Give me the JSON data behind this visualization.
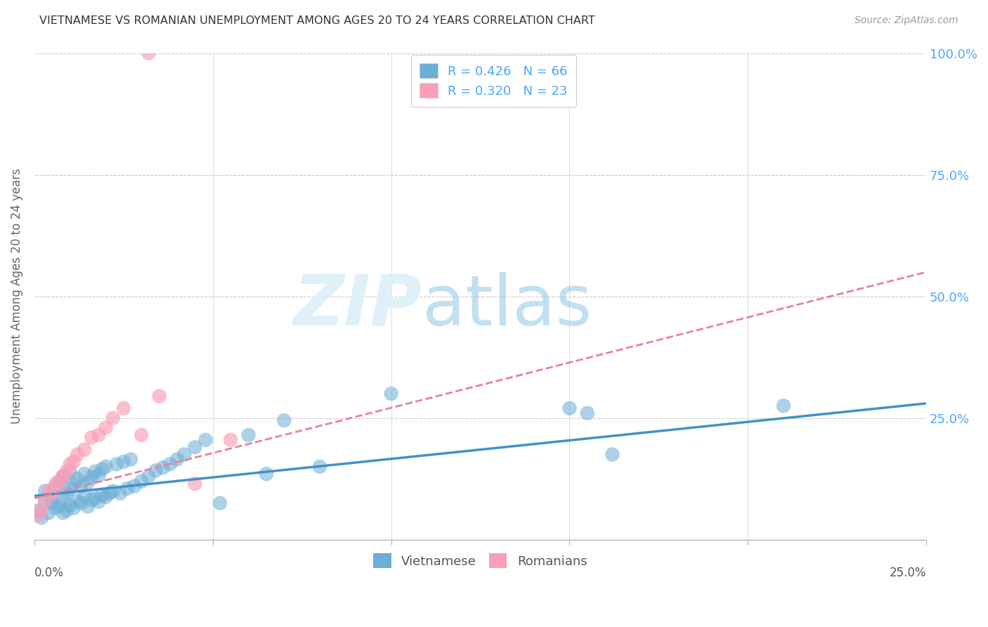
{
  "title": "VIETNAMESE VS ROMANIAN UNEMPLOYMENT AMONG AGES 20 TO 24 YEARS CORRELATION CHART",
  "source": "Source: ZipAtlas.com",
  "ylabel": "Unemployment Among Ages 20 to 24 years",
  "ylabel_ticks": [
    "25.0%",
    "50.0%",
    "75.0%",
    "100.0%"
  ],
  "ylabel_tick_vals": [
    0.25,
    0.5,
    0.75,
    1.0
  ],
  "xmin": 0.0,
  "xmax": 0.25,
  "ymin": 0.0,
  "ymax": 1.0,
  "blue_color": "#6baed6",
  "pink_color": "#fa9fb5",
  "blue_line_color": "#4292c6",
  "pink_line_color": "#e8829a",
  "axis_label_color": "#4da6ff",
  "title_color": "#333333",
  "grid_color": "#cccccc",
  "viet_x": [
    0.001,
    0.002,
    0.003,
    0.003,
    0.004,
    0.005,
    0.005,
    0.006,
    0.006,
    0.007,
    0.007,
    0.008,
    0.008,
    0.008,
    0.009,
    0.009,
    0.01,
    0.01,
    0.01,
    0.011,
    0.011,
    0.012,
    0.012,
    0.013,
    0.013,
    0.014,
    0.014,
    0.015,
    0.015,
    0.016,
    0.016,
    0.017,
    0.017,
    0.018,
    0.018,
    0.019,
    0.019,
    0.02,
    0.02,
    0.021,
    0.022,
    0.023,
    0.024,
    0.025,
    0.026,
    0.027,
    0.028,
    0.03,
    0.032,
    0.034,
    0.036,
    0.038,
    0.04,
    0.042,
    0.045,
    0.048,
    0.052,
    0.06,
    0.065,
    0.07,
    0.08,
    0.1,
    0.15,
    0.155,
    0.162,
    0.21
  ],
  "viet_y": [
    0.06,
    0.045,
    0.08,
    0.1,
    0.055,
    0.075,
    0.09,
    0.065,
    0.11,
    0.07,
    0.12,
    0.055,
    0.085,
    0.13,
    0.06,
    0.095,
    0.07,
    0.105,
    0.14,
    0.065,
    0.115,
    0.08,
    0.125,
    0.075,
    0.11,
    0.09,
    0.135,
    0.068,
    0.118,
    0.082,
    0.128,
    0.085,
    0.14,
    0.078,
    0.132,
    0.092,
    0.145,
    0.088,
    0.15,
    0.095,
    0.1,
    0.155,
    0.095,
    0.16,
    0.105,
    0.165,
    0.11,
    0.12,
    0.13,
    0.142,
    0.148,
    0.155,
    0.165,
    0.175,
    0.19,
    0.205,
    0.075,
    0.215,
    0.135,
    0.245,
    0.15,
    0.3,
    0.27,
    0.26,
    0.175,
    0.275
  ],
  "rom_x": [
    0.001,
    0.002,
    0.003,
    0.004,
    0.005,
    0.006,
    0.007,
    0.008,
    0.009,
    0.01,
    0.011,
    0.012,
    0.014,
    0.016,
    0.018,
    0.02,
    0.022,
    0.025,
    0.03,
    0.035,
    0.045,
    0.055,
    0.032
  ],
  "rom_y": [
    0.05,
    0.06,
    0.08,
    0.1,
    0.095,
    0.115,
    0.12,
    0.13,
    0.14,
    0.155,
    0.16,
    0.175,
    0.185,
    0.21,
    0.215,
    0.23,
    0.25,
    0.27,
    0.215,
    0.295,
    0.115,
    0.205,
    1.0
  ]
}
